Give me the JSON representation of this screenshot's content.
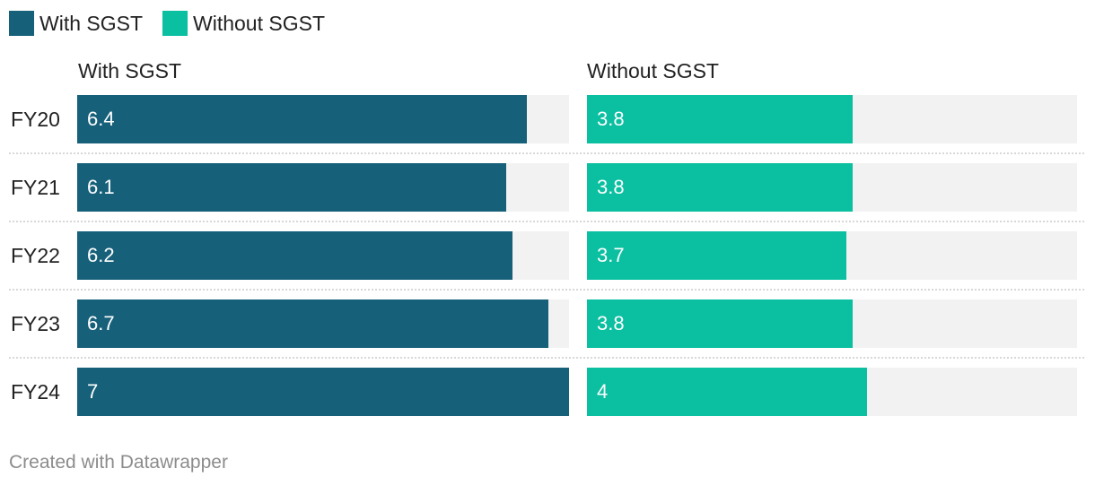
{
  "legend": [
    {
      "label": "With SGST",
      "color": "#17607a"
    },
    {
      "label": "Without SGST",
      "color": "#0bbfa1"
    }
  ],
  "footer": "Created with Datawrapper",
  "chart_data": {
    "type": "bar",
    "orientation": "horizontal",
    "layout": "split-panels",
    "categories": [
      "FY20",
      "FY21",
      "FY22",
      "FY23",
      "FY24"
    ],
    "series": [
      {
        "name": "With SGST",
        "panel_title": "With SGST",
        "color": "#17607a",
        "values": [
          6.4,
          6.1,
          6.2,
          6.7,
          7
        ],
        "labels": [
          "6.4",
          "6.1",
          "6.2",
          "6.7",
          "7"
        ],
        "xlim": [
          0,
          7
        ]
      },
      {
        "name": "Without SGST",
        "panel_title": "Without SGST",
        "color": "#0bbfa1",
        "values": [
          3.8,
          3.8,
          3.7,
          3.8,
          4
        ],
        "labels": [
          "3.8",
          "3.8",
          "3.7",
          "3.8",
          "4"
        ],
        "xlim": [
          0,
          7
        ]
      }
    ],
    "track_color": "#f2f2f2"
  }
}
